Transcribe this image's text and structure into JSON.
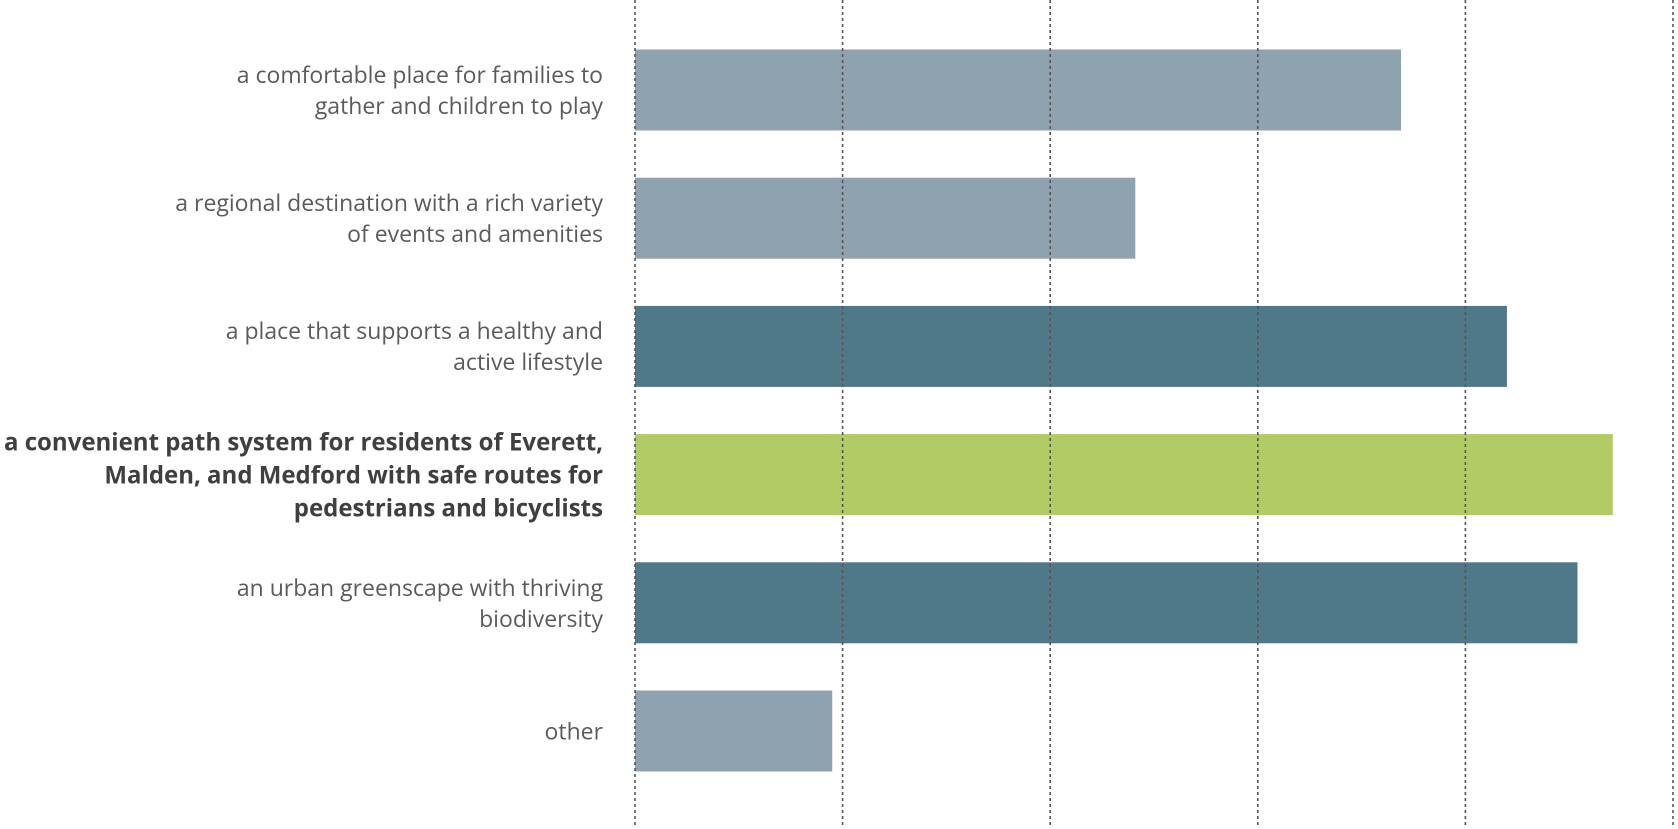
{
  "chart_data": {
    "type": "hbar",
    "categories": [
      "a comfortable place for families to gather and children to play",
      "a regional destination with a rich variety of events and amenities",
      "a place that supports a healthy and active lifestyle",
      "a convenient path system for residents of Everett, Malden, and Medford with safe routes for pedestrians and bicyclists",
      "an urban greenscape with thriving biodiversity",
      "other"
    ],
    "values": [
      3.69,
      2.41,
      4.2,
      4.71,
      4.54,
      0.95
    ],
    "colors": [
      "#8fa2b0",
      "#8fa2b0",
      "#4f7889",
      "#b3cb65",
      "#4f7889",
      "#8fa2b0"
    ],
    "highlight_index": 3,
    "xlim": [
      0,
      5
    ],
    "xticks": [
      0,
      1,
      2,
      3,
      4,
      5
    ],
    "grid": true
  }
}
